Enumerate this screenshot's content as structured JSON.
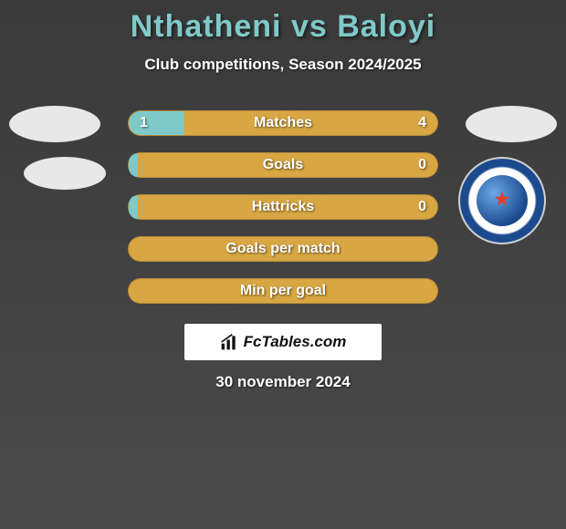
{
  "title": "Nthatheni vs Baloyi",
  "subtitle": "Club competitions, Season 2024/2025",
  "colors": {
    "accent_teal": "#7fc9c9",
    "bar_gold": "#d8a642",
    "text_white": "#ffffff",
    "bg_dark": "#3f3f3f"
  },
  "bars": [
    {
      "label": "Matches",
      "left": "1",
      "right": "4",
      "fill_left_pct": 18
    },
    {
      "label": "Goals",
      "left": "",
      "right": "0",
      "fill_left_pct": 3
    },
    {
      "label": "Hattricks",
      "left": "",
      "right": "0",
      "fill_left_pct": 3
    },
    {
      "label": "Goals per match",
      "left": "",
      "right": "",
      "fill_left_pct": 0
    },
    {
      "label": "Min per goal",
      "left": "",
      "right": "",
      "fill_left_pct": 0
    }
  ],
  "footer_brand": "FcTables.com",
  "footer_date": "30 november 2024",
  "badge_text": "SUPERSPORT UNITED FC"
}
